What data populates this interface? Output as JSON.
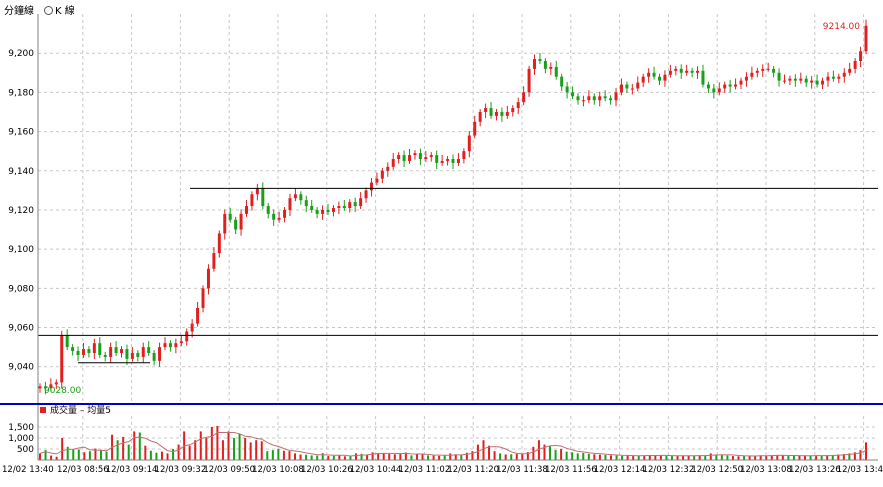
{
  "toolbar": {
    "minute_tab": "分鐘線",
    "kline_tab": "K 線",
    "kline_icon": "circle-icon"
  },
  "volume_legend": {
    "label": "成交量",
    "separator": "–",
    "ma_label": "均量5",
    "bar_color_up": "#e02020",
    "bar_color_down": "#18a018"
  },
  "colors": {
    "up": "#e02020",
    "down": "#18a018",
    "ma_line": "#c07070",
    "axis_line": "#0000cc",
    "grid": "#c8c8c8"
  },
  "annotations": {
    "last_price": "9214.00",
    "low_price": "9028.00"
  },
  "chart_data": [
    {
      "type": "candlestick",
      "title": "",
      "ylim": [
        9022,
        9220
      ],
      "y_ticks": [
        "9,040",
        "9,060",
        "9,080",
        "9,100",
        "9,120",
        "9,140",
        "9,160",
        "9,180",
        "9,200"
      ],
      "y_tick_values": [
        9040,
        9060,
        9080,
        9100,
        9120,
        9140,
        9160,
        9180,
        9200
      ],
      "horizontal_lines": [
        9056,
        9131,
        9042
      ],
      "price_path": [
        9030,
        9029,
        9031,
        9032,
        9056,
        9050,
        9048,
        9046,
        9049,
        9047,
        9052,
        9046,
        9045,
        9050,
        9047,
        9049,
        9044,
        9047,
        9045,
        9050,
        9047,
        9043,
        9050,
        9052,
        9050,
        9052,
        9053,
        9058,
        9062,
        9070,
        9080,
        9090,
        9098,
        9108,
        9118,
        9115,
        9110,
        9118,
        9122,
        9128,
        9131,
        9122,
        9118,
        9115,
        9116,
        9120,
        9126,
        9128,
        9125,
        9122,
        9120,
        9118,
        9120,
        9119,
        9121,
        9122,
        9121,
        9124,
        9122,
        9126,
        9130,
        9134,
        9136,
        9140,
        9142,
        9146,
        9148,
        9145,
        9148,
        9149,
        9146,
        9147,
        9148,
        9144,
        9145,
        9146,
        9144,
        9146,
        9150,
        9158,
        9165,
        9170,
        9172,
        9168,
        9170,
        9168,
        9170,
        9172,
        9175,
        9180,
        9192,
        9197,
        9196,
        9192,
        9193,
        9188,
        9183,
        9180,
        9178,
        9176,
        9176,
        9178,
        9176,
        9178,
        9177,
        9176,
        9180,
        9184,
        9182,
        9182,
        9185,
        9188,
        9190,
        9188,
        9186,
        9189,
        9191,
        9192,
        9190,
        9191,
        9190,
        9191,
        9184,
        9182,
        9180,
        9182,
        9184,
        9183,
        9184,
        9186,
        9188,
        9190,
        9191,
        9192,
        9192,
        9190,
        9186,
        9186,
        9187,
        9186,
        9187,
        9185,
        9186,
        9184,
        9186,
        9188,
        9187,
        9188,
        9190,
        9192,
        9196,
        9201,
        9214
      ]
    },
    {
      "type": "bar",
      "title": "",
      "ylim": [
        0,
        2000
      ],
      "y_ticks": [
        "500",
        "1,000",
        "1,500"
      ],
      "y_tick_values": [
        500,
        1000,
        1500
      ],
      "volumes": [
        300,
        450,
        200,
        150,
        1000,
        600,
        500,
        480,
        350,
        400,
        520,
        450,
        380,
        1150,
        900,
        1050,
        700,
        1300,
        1250,
        650,
        420,
        330,
        380,
        300,
        500,
        700,
        1300,
        650,
        900,
        1300,
        1000,
        1500,
        1550,
        900,
        1300,
        1000,
        1200,
        1000,
        800,
        900,
        850,
        400,
        450,
        500,
        420,
        400,
        300,
        250,
        240,
        210,
        200,
        310,
        180,
        190,
        210,
        170,
        160,
        300,
        280,
        240,
        350,
        300,
        320,
        280,
        260,
        300,
        340,
        210,
        250,
        260,
        210,
        200,
        190,
        200,
        300,
        260,
        220,
        330,
        400,
        700,
        900,
        650,
        400,
        300,
        250,
        260,
        280,
        300,
        360,
        600,
        900,
        700,
        640,
        450,
        500,
        380,
        350,
        300,
        320,
        280,
        260,
        240,
        230,
        210,
        200,
        190,
        220,
        180,
        190,
        210,
        230,
        210,
        200,
        190,
        180,
        200,
        210,
        190,
        180,
        210,
        200,
        300,
        250,
        220,
        200,
        180,
        170,
        190,
        200,
        180,
        210,
        200,
        220,
        230,
        200,
        180,
        190,
        200,
        210,
        190,
        200,
        190,
        220,
        230,
        250,
        270,
        300,
        350,
        450,
        800
      ],
      "ma5_label": "均量5"
    }
  ],
  "x_axis": {
    "tick_labels": [
      "12/02 13:40",
      "12/03 08:56",
      "12/03 09:14",
      "12/03 09:32",
      "12/03 09:50",
      "12/03 10:08",
      "12/03 10:26",
      "12/03 10:44",
      "12/03 11:02",
      "12/03 11:20",
      "12/03 11:38",
      "12/03 11:56",
      "12/03 12:14",
      "12/03 12:32",
      "12/03 12:50",
      "12/03 13:08",
      "12/03 13:26",
      "12/03 13:4"
    ]
  }
}
